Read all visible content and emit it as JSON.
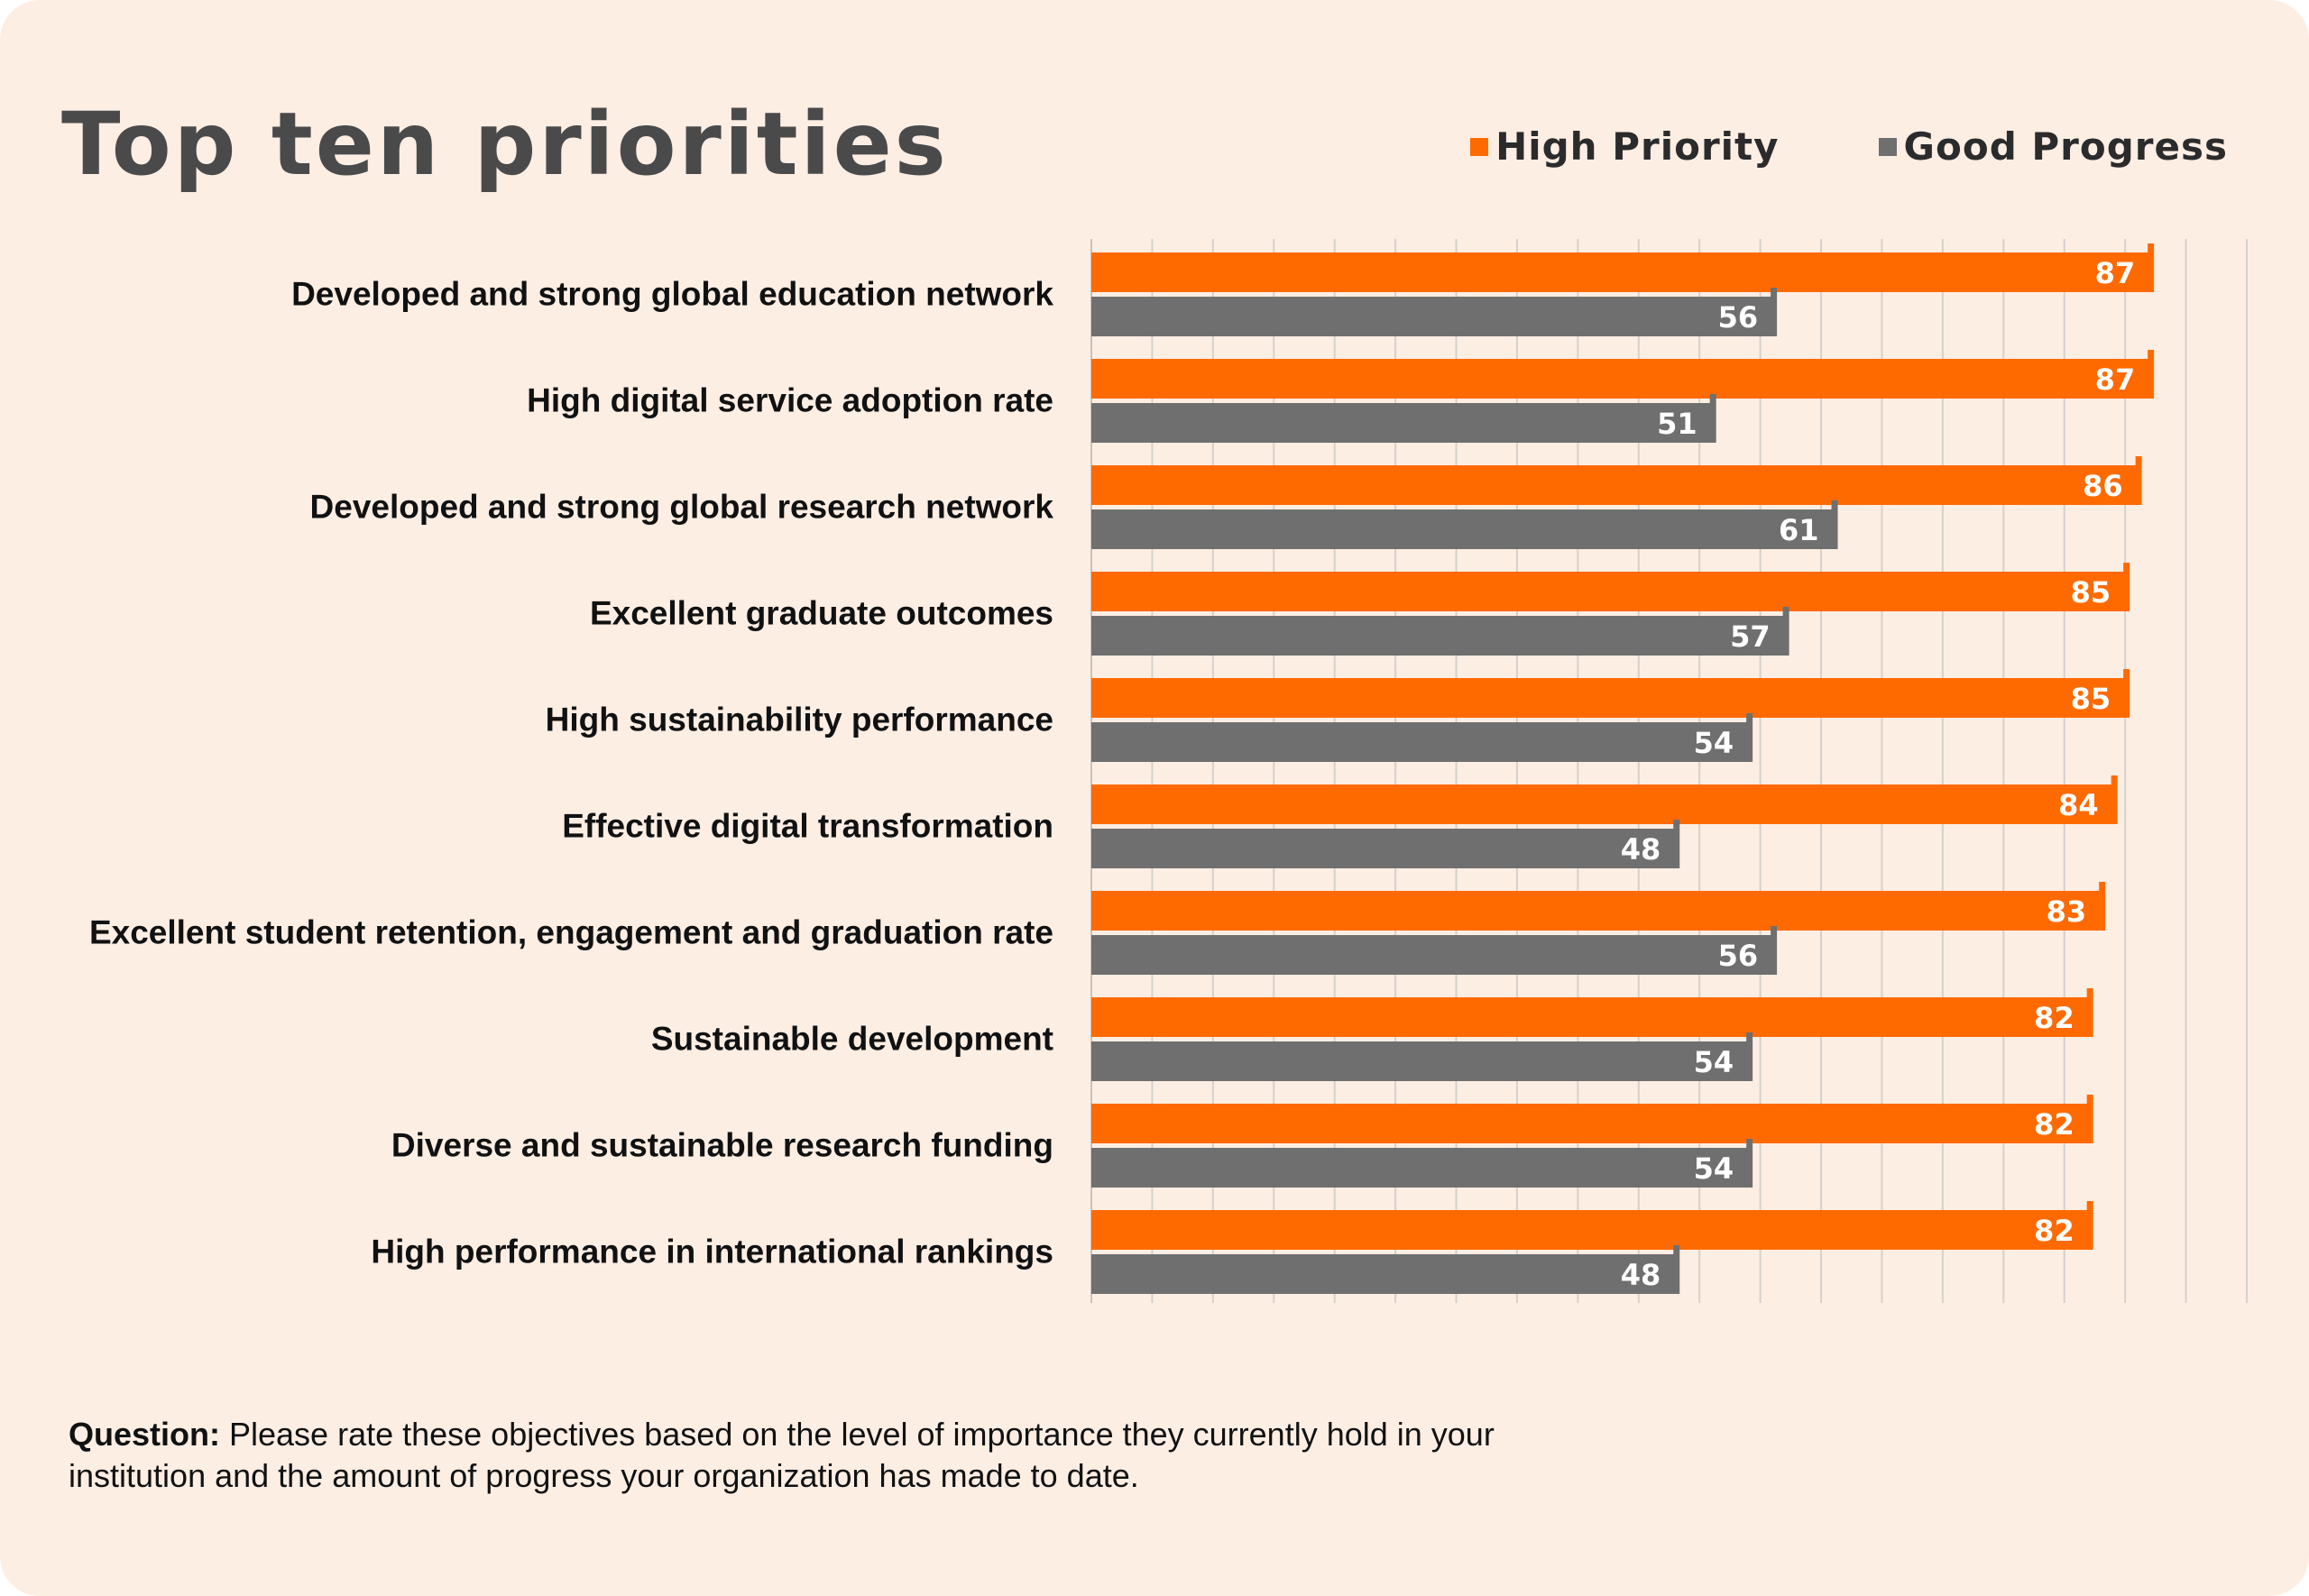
{
  "colors": {
    "high_priority": "#ff6a00",
    "good_progress": "#6f6f6f",
    "background": "#fdeee4",
    "grid": "#d6d0cb"
  },
  "chart_data": {
    "type": "bar",
    "orientation": "horizontal",
    "title": "Top ten priorities",
    "categories": [
      "Developed and strong global education network",
      "High digital service adoption rate",
      "Developed and strong global research network",
      "Excellent graduate outcomes",
      "High sustainability performance",
      "Effective digital transformation",
      "Excellent student retention, engagement and graduation rate",
      "Sustainable development",
      "Diverse and sustainable research funding",
      "High performance in international rankings"
    ],
    "series": [
      {
        "name": "High Priority",
        "color": "#ff6a00",
        "values": [
          87,
          87,
          86,
          85,
          85,
          84,
          83,
          82,
          82,
          82
        ]
      },
      {
        "name": "Good Progress",
        "color": "#6f6f6f",
        "values": [
          56,
          51,
          61,
          57,
          54,
          48,
          56,
          54,
          54,
          48
        ]
      }
    ],
    "xlim": [
      0,
      95
    ],
    "grid": true,
    "legend": "top-right",
    "data_labels": true
  },
  "footnote": {
    "lead": "Question:",
    "text": " Please rate these objectives based on the level of importance they currently hold in your institution and the amount of progress your organization has made to date."
  }
}
